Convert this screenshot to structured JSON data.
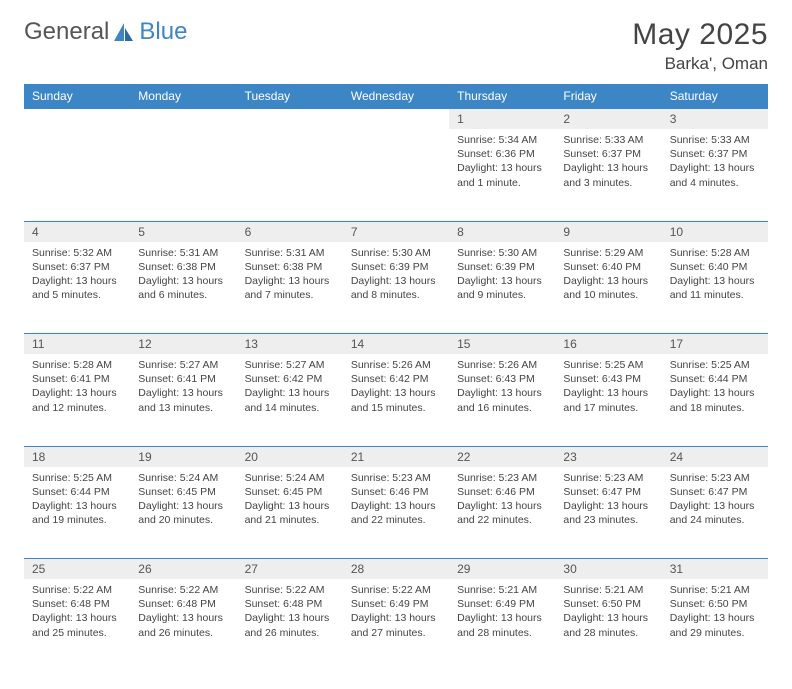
{
  "brand": {
    "part1": "General",
    "part2": "Blue"
  },
  "title": "May 2025",
  "location": "Barka', Oman",
  "colors": {
    "header_bg": "#3d86c6",
    "header_fg": "#ffffff",
    "daynum_bg": "#eeeeee",
    "border": "#3d86c6",
    "text": "#444444"
  },
  "weekdays": [
    "Sunday",
    "Monday",
    "Tuesday",
    "Wednesday",
    "Thursday",
    "Friday",
    "Saturday"
  ],
  "weeks": [
    [
      null,
      null,
      null,
      null,
      {
        "n": "1",
        "sr": "5:34 AM",
        "ss": "6:36 PM",
        "dl": "13 hours and 1 minute."
      },
      {
        "n": "2",
        "sr": "5:33 AM",
        "ss": "6:37 PM",
        "dl": "13 hours and 3 minutes."
      },
      {
        "n": "3",
        "sr": "5:33 AM",
        "ss": "6:37 PM",
        "dl": "13 hours and 4 minutes."
      }
    ],
    [
      {
        "n": "4",
        "sr": "5:32 AM",
        "ss": "6:37 PM",
        "dl": "13 hours and 5 minutes."
      },
      {
        "n": "5",
        "sr": "5:31 AM",
        "ss": "6:38 PM",
        "dl": "13 hours and 6 minutes."
      },
      {
        "n": "6",
        "sr": "5:31 AM",
        "ss": "6:38 PM",
        "dl": "13 hours and 7 minutes."
      },
      {
        "n": "7",
        "sr": "5:30 AM",
        "ss": "6:39 PM",
        "dl": "13 hours and 8 minutes."
      },
      {
        "n": "8",
        "sr": "5:30 AM",
        "ss": "6:39 PM",
        "dl": "13 hours and 9 minutes."
      },
      {
        "n": "9",
        "sr": "5:29 AM",
        "ss": "6:40 PM",
        "dl": "13 hours and 10 minutes."
      },
      {
        "n": "10",
        "sr": "5:28 AM",
        "ss": "6:40 PM",
        "dl": "13 hours and 11 minutes."
      }
    ],
    [
      {
        "n": "11",
        "sr": "5:28 AM",
        "ss": "6:41 PM",
        "dl": "13 hours and 12 minutes."
      },
      {
        "n": "12",
        "sr": "5:27 AM",
        "ss": "6:41 PM",
        "dl": "13 hours and 13 minutes."
      },
      {
        "n": "13",
        "sr": "5:27 AM",
        "ss": "6:42 PM",
        "dl": "13 hours and 14 minutes."
      },
      {
        "n": "14",
        "sr": "5:26 AM",
        "ss": "6:42 PM",
        "dl": "13 hours and 15 minutes."
      },
      {
        "n": "15",
        "sr": "5:26 AM",
        "ss": "6:43 PM",
        "dl": "13 hours and 16 minutes."
      },
      {
        "n": "16",
        "sr": "5:25 AM",
        "ss": "6:43 PM",
        "dl": "13 hours and 17 minutes."
      },
      {
        "n": "17",
        "sr": "5:25 AM",
        "ss": "6:44 PM",
        "dl": "13 hours and 18 minutes."
      }
    ],
    [
      {
        "n": "18",
        "sr": "5:25 AM",
        "ss": "6:44 PM",
        "dl": "13 hours and 19 minutes."
      },
      {
        "n": "19",
        "sr": "5:24 AM",
        "ss": "6:45 PM",
        "dl": "13 hours and 20 minutes."
      },
      {
        "n": "20",
        "sr": "5:24 AM",
        "ss": "6:45 PM",
        "dl": "13 hours and 21 minutes."
      },
      {
        "n": "21",
        "sr": "5:23 AM",
        "ss": "6:46 PM",
        "dl": "13 hours and 22 minutes."
      },
      {
        "n": "22",
        "sr": "5:23 AM",
        "ss": "6:46 PM",
        "dl": "13 hours and 22 minutes."
      },
      {
        "n": "23",
        "sr": "5:23 AM",
        "ss": "6:47 PM",
        "dl": "13 hours and 23 minutes."
      },
      {
        "n": "24",
        "sr": "5:23 AM",
        "ss": "6:47 PM",
        "dl": "13 hours and 24 minutes."
      }
    ],
    [
      {
        "n": "25",
        "sr": "5:22 AM",
        "ss": "6:48 PM",
        "dl": "13 hours and 25 minutes."
      },
      {
        "n": "26",
        "sr": "5:22 AM",
        "ss": "6:48 PM",
        "dl": "13 hours and 26 minutes."
      },
      {
        "n": "27",
        "sr": "5:22 AM",
        "ss": "6:48 PM",
        "dl": "13 hours and 26 minutes."
      },
      {
        "n": "28",
        "sr": "5:22 AM",
        "ss": "6:49 PM",
        "dl": "13 hours and 27 minutes."
      },
      {
        "n": "29",
        "sr": "5:21 AM",
        "ss": "6:49 PM",
        "dl": "13 hours and 28 minutes."
      },
      {
        "n": "30",
        "sr": "5:21 AM",
        "ss": "6:50 PM",
        "dl": "13 hours and 28 minutes."
      },
      {
        "n": "31",
        "sr": "5:21 AM",
        "ss": "6:50 PM",
        "dl": "13 hours and 29 minutes."
      }
    ]
  ],
  "labels": {
    "sunrise": "Sunrise: ",
    "sunset": "Sunset: ",
    "daylight": "Daylight: "
  }
}
